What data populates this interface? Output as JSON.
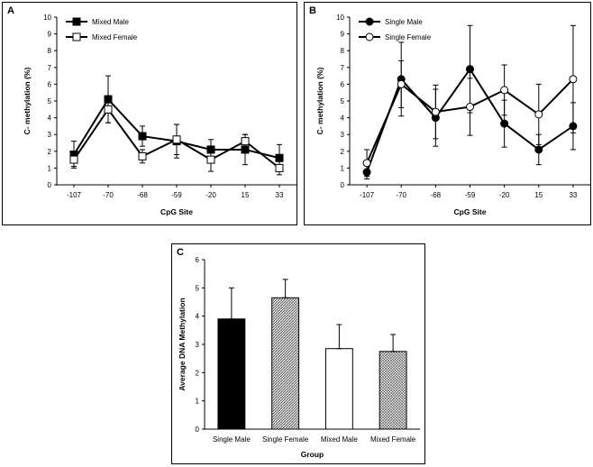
{
  "chart_data": [
    {
      "panel": "A",
      "type": "line",
      "xlabel": "CpG Site",
      "ylabel": "C- methylation  (%)",
      "categories": [
        "-107",
        "-70",
        "-68",
        "-59",
        "-20",
        "15",
        "33"
      ],
      "ylim": [
        0,
        10
      ],
      "yticks": [
        0,
        1,
        2,
        3,
        4,
        5,
        6,
        7,
        8,
        9,
        10
      ],
      "legend_position": "top-left",
      "series": [
        {
          "name": "Mixed Male",
          "marker": "filled-square",
          "values": [
            1.8,
            5.1,
            2.9,
            2.6,
            2.1,
            2.1,
            1.6
          ],
          "errors": [
            0.8,
            1.4,
            0.6,
            1.0,
            0.6,
            0.9,
            0.8
          ]
        },
        {
          "name": "Mixed Female",
          "marker": "open-square",
          "values": [
            1.5,
            4.5,
            1.7,
            2.7,
            1.5,
            2.6,
            1.0
          ],
          "errors": [
            0.4,
            0.8,
            0.4,
            0.9,
            0.7,
            0.4,
            0.4
          ]
        }
      ]
    },
    {
      "panel": "B",
      "type": "line",
      "xlabel": "CpG Site",
      "ylabel": "C- methylation  (%)",
      "categories": [
        "-107",
        "-70",
        "-68",
        "-59",
        "-20",
        "15",
        "33"
      ],
      "ylim": [
        0,
        10
      ],
      "yticks": [
        0,
        1,
        2,
        3,
        4,
        5,
        6,
        7,
        8,
        9,
        10
      ],
      "legend_position": "top-left",
      "series": [
        {
          "name": "Single Male",
          "marker": "filled-circle",
          "values": [
            0.75,
            6.3,
            4.0,
            6.9,
            3.65,
            2.1,
            3.5
          ],
          "errors": [
            0.4,
            2.2,
            1.7,
            2.6,
            1.4,
            0.9,
            1.4
          ]
        },
        {
          "name": "Single Female",
          "marker": "open-circle",
          "values": [
            1.3,
            6.0,
            4.35,
            4.65,
            5.65,
            4.2,
            6.3
          ],
          "errors": [
            0.8,
            1.4,
            1.6,
            1.7,
            1.5,
            1.8,
            3.2
          ]
        }
      ]
    },
    {
      "panel": "C",
      "type": "bar",
      "xlabel": "Group",
      "ylabel": "Average DNA Methylation",
      "categories": [
        "Single Male",
        "Single Female",
        "Mixed Male",
        "Mixed Female"
      ],
      "values": [
        3.9,
        4.65,
        2.85,
        2.75
      ],
      "errors": [
        1.1,
        0.65,
        0.85,
        0.6
      ],
      "fills": [
        "solid-black",
        "hatched-gray",
        "white",
        "crosshatch"
      ],
      "ylim": [
        0,
        6
      ],
      "yticks": [
        0,
        1,
        2,
        3,
        4,
        5,
        6
      ]
    }
  ]
}
